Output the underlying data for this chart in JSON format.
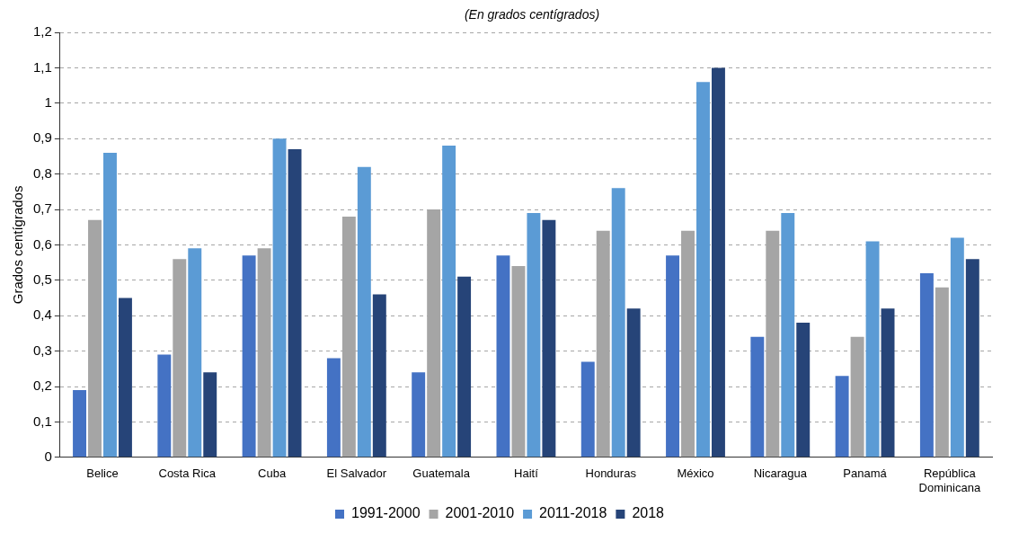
{
  "chart_data": {
    "type": "bar",
    "subtitle": "(En grados centígrados)",
    "ylabel": "Grados centígrados",
    "categories": [
      "Belice",
      "Costa Rica",
      "Cuba",
      "El Salvador",
      "Guatemala",
      "Haití",
      "Honduras",
      "México",
      "Nicaragua",
      "Panamá",
      "República Dominicana"
    ],
    "series": [
      {
        "name": "1991-2000",
        "color": "#4472c4",
        "values": [
          0.19,
          0.29,
          0.57,
          0.28,
          0.24,
          0.57,
          0.27,
          0.57,
          0.34,
          0.23,
          0.52
        ]
      },
      {
        "name": "2001-2010",
        "color": "#a5a5a5",
        "values": [
          0.67,
          0.56,
          0.59,
          0.68,
          0.7,
          0.54,
          0.64,
          0.64,
          0.64,
          0.34,
          0.48
        ]
      },
      {
        "name": "2011-2018",
        "color": "#5b9bd5",
        "values": [
          0.86,
          0.59,
          0.9,
          0.82,
          0.88,
          0.69,
          0.76,
          1.06,
          0.69,
          0.61,
          0.62
        ]
      },
      {
        "name": "2018",
        "color": "#264478",
        "values": [
          0.45,
          0.24,
          0.87,
          0.46,
          0.51,
          0.67,
          0.42,
          1.1,
          0.38,
          0.42,
          0.56
        ]
      }
    ],
    "ylim": [
      0,
      1.2
    ],
    "yticks": [
      {
        "value": 0,
        "label": "0"
      },
      {
        "value": 0.1,
        "label": "0,1"
      },
      {
        "value": 0.2,
        "label": "0,2"
      },
      {
        "value": 0.3,
        "label": "0,3"
      },
      {
        "value": 0.4,
        "label": "0,4"
      },
      {
        "value": 0.5,
        "label": "0,5"
      },
      {
        "value": 0.6,
        "label": "0,6"
      },
      {
        "value": 0.7,
        "label": "0,7"
      },
      {
        "value": 0.8,
        "label": "0,8"
      },
      {
        "value": 0.9,
        "label": "0,9"
      },
      {
        "value": 1,
        "label": "1"
      },
      {
        "value": 1.1,
        "label": "1,1"
      },
      {
        "value": 1.2,
        "label": "1,2"
      }
    ],
    "grid": "y",
    "legend": "bottom"
  }
}
